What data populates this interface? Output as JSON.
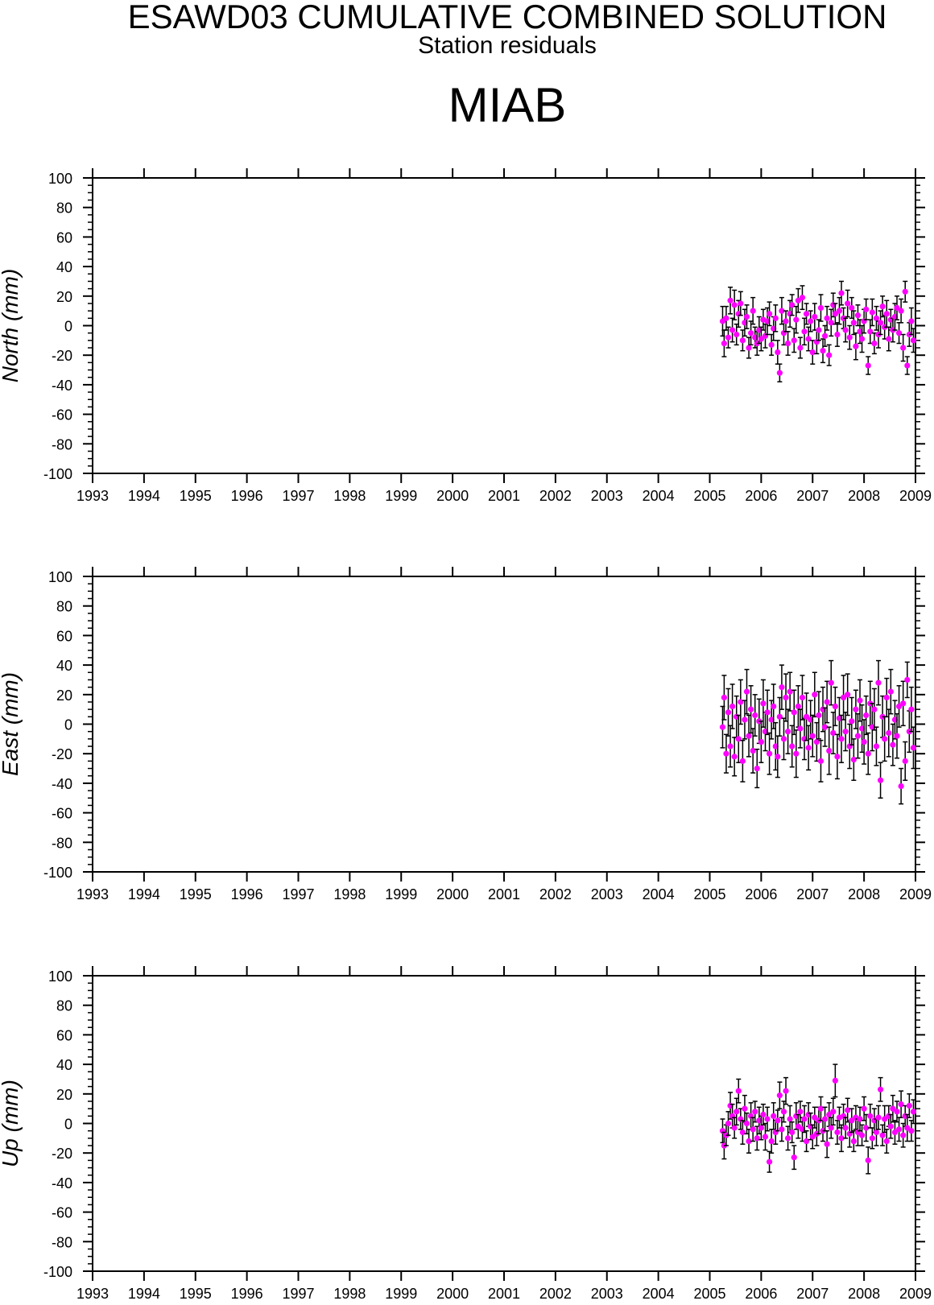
{
  "header": {
    "title": "ESAWD03 CUMULATIVE COMBINED SOLUTION",
    "subtitle": "Station residuals",
    "station": "MIAB"
  },
  "colors": {
    "marker": "#ff00ff",
    "errorbar": "#000000",
    "axis": "#000000"
  },
  "chart_data": [
    {
      "type": "scatter",
      "ylabel": "North (mm)",
      "xlim": [
        1993,
        2009
      ],
      "ylim": [
        -100,
        100
      ],
      "xticks": [
        "1993",
        "1994",
        "1995",
        "1996",
        "1997",
        "1998",
        "1999",
        "2000",
        "2001",
        "2002",
        "2003",
        "2004",
        "2005",
        "2006",
        "2007",
        "2008",
        "2009"
      ],
      "yticks": [
        "100",
        "80",
        "60",
        "40",
        "20",
        "0",
        "-20",
        "-40",
        "-60",
        "-80",
        "-100"
      ],
      "series": [
        {
          "x": [
            2005.25,
            2005.28,
            2005.32,
            2005.36,
            2005.4,
            2005.44,
            2005.48,
            2005.52,
            2005.56,
            2005.6,
            2005.64,
            2005.68,
            2005.72,
            2005.76,
            2005.8,
            2005.84,
            2005.88,
            2005.92,
            2005.96,
            2006.0,
            2006.04,
            2006.08,
            2006.12,
            2006.16,
            2006.2,
            2006.24,
            2006.28,
            2006.32,
            2006.36,
            2006.4,
            2006.44,
            2006.48,
            2006.52,
            2006.56,
            2006.6,
            2006.64,
            2006.68,
            2006.72,
            2006.76,
            2006.8,
            2006.84,
            2006.88,
            2006.92,
            2006.96,
            2007.0,
            2007.04,
            2007.08,
            2007.12,
            2007.16,
            2007.2,
            2007.24,
            2007.28,
            2007.32,
            2007.36,
            2007.4,
            2007.44,
            2007.48,
            2007.52,
            2007.56,
            2007.6,
            2007.64,
            2007.68,
            2007.72,
            2007.76,
            2007.8,
            2007.84,
            2007.88,
            2007.92,
            2007.96,
            2008.0,
            2008.04,
            2008.08,
            2008.12,
            2008.16,
            2008.2,
            2008.24,
            2008.28,
            2008.32,
            2008.36,
            2008.4,
            2008.44,
            2008.48,
            2008.52,
            2008.56,
            2008.6,
            2008.64,
            2008.68,
            2008.72,
            2008.76,
            2008.8,
            2008.84,
            2008.88,
            2008.92,
            2008.96
          ],
          "y": [
            3,
            -12,
            5,
            -8,
            17,
            -3,
            14,
            -6,
            8,
            15,
            -10,
            2,
            6,
            -15,
            -5,
            10,
            -8,
            -12,
            -3,
            -9,
            4,
            -7,
            3,
            8,
            -13,
            -2,
            5,
            -18,
            -32,
            10,
            -5,
            3,
            -12,
            8,
            14,
            -10,
            4,
            17,
            -15,
            19,
            -4,
            8,
            -9,
            3,
            -18,
            6,
            -11,
            -3,
            12,
            -17,
            -7,
            5,
            -20,
            2,
            14,
            8,
            -6,
            10,
            22,
            5,
            -3,
            15,
            -8,
            12,
            2,
            -14,
            7,
            -4,
            -9,
            3,
            11,
            -27,
            -4,
            9,
            -12,
            5,
            -6,
            2,
            13,
            -1,
            8,
            -9,
            4,
            -3,
            6,
            12,
            -5,
            10,
            -15,
            23,
            -27,
            -6,
            3,
            -10
          ],
          "err": [
            10,
            9,
            8,
            7,
            9,
            8,
            10,
            7,
            9,
            8,
            7,
            9,
            8,
            7,
            8,
            9,
            7,
            8,
            9,
            8,
            7,
            8,
            9,
            8,
            7,
            8,
            9,
            8,
            6,
            9,
            8,
            7,
            8,
            9,
            7,
            8,
            9,
            8,
            7,
            8,
            9,
            7,
            8,
            7,
            8,
            9,
            8,
            7,
            9,
            8,
            7,
            8,
            7,
            9,
            8,
            7,
            8,
            9,
            8,
            7,
            8,
            9,
            8,
            7,
            8,
            9,
            7,
            8,
            9,
            8,
            7,
            6,
            8,
            9,
            7,
            8,
            9,
            8,
            7,
            8,
            9,
            8,
            7,
            8,
            9,
            8,
            7,
            8,
            9,
            7,
            6,
            8,
            9,
            8
          ]
        }
      ]
    },
    {
      "type": "scatter",
      "ylabel": "East (mm)",
      "xlim": [
        1993,
        2009
      ],
      "ylim": [
        -100,
        100
      ],
      "xticks": [
        "1993",
        "1994",
        "1995",
        "1996",
        "1997",
        "1998",
        "1999",
        "2000",
        "2001",
        "2002",
        "2003",
        "2004",
        "2005",
        "2006",
        "2007",
        "2008",
        "2009"
      ],
      "yticks": [
        "100",
        "80",
        "60",
        "40",
        "20",
        "0",
        "-20",
        "-40",
        "-60",
        "-80",
        "-100"
      ],
      "series": [
        {
          "x": [
            2005.25,
            2005.28,
            2005.32,
            2005.36,
            2005.4,
            2005.44,
            2005.48,
            2005.52,
            2005.56,
            2005.6,
            2005.64,
            2005.68,
            2005.72,
            2005.76,
            2005.8,
            2005.84,
            2005.88,
            2005.92,
            2005.96,
            2006.0,
            2006.04,
            2006.08,
            2006.12,
            2006.16,
            2006.2,
            2006.24,
            2006.28,
            2006.32,
            2006.36,
            2006.4,
            2006.44,
            2006.48,
            2006.52,
            2006.56,
            2006.6,
            2006.64,
            2006.68,
            2006.72,
            2006.76,
            2006.8,
            2006.84,
            2006.88,
            2006.92,
            2006.96,
            2007.0,
            2007.04,
            2007.08,
            2007.12,
            2007.16,
            2007.2,
            2007.24,
            2007.28,
            2007.32,
            2007.36,
            2007.4,
            2007.44,
            2007.48,
            2007.52,
            2007.56,
            2007.6,
            2007.64,
            2007.68,
            2007.72,
            2007.76,
            2007.8,
            2007.84,
            2007.88,
            2007.92,
            2007.96,
            2008.0,
            2008.04,
            2008.08,
            2008.12,
            2008.16,
            2008.2,
            2008.24,
            2008.28,
            2008.32,
            2008.36,
            2008.4,
            2008.44,
            2008.48,
            2008.52,
            2008.56,
            2008.6,
            2008.64,
            2008.68,
            2008.72,
            2008.76,
            2008.8,
            2008.84,
            2008.88,
            2008.92,
            2008.96
          ],
          "y": [
            -2,
            18,
            -20,
            8,
            -15,
            12,
            -22,
            5,
            -10,
            15,
            -25,
            3,
            22,
            -8,
            10,
            -18,
            6,
            -30,
            2,
            -12,
            14,
            -5,
            8,
            -20,
            3,
            12,
            -15,
            -22,
            5,
            25,
            -10,
            18,
            -5,
            22,
            -15,
            8,
            -20,
            12,
            -3,
            18,
            -10,
            5,
            -16,
            3,
            -8,
            20,
            -12,
            6,
            -25,
            10,
            -2,
            15,
            -18,
            28,
            -6,
            12,
            -22,
            4,
            -10,
            18,
            -5,
            20,
            -15,
            2,
            -24,
            10,
            -8,
            16,
            -3,
            -12,
            6,
            -20,
            14,
            -2,
            10,
            -15,
            28,
            -38,
            5,
            -10,
            18,
            -6,
            22,
            -14,
            3,
            -8,
            12,
            -42,
            14,
            -25,
            30,
            -5,
            10,
            -16
          ],
          "err": [
            14,
            15,
            13,
            16,
            14,
            15,
            13,
            14,
            16,
            15,
            14,
            13,
            15,
            14,
            16,
            15,
            14,
            13,
            15,
            14,
            16,
            13,
            15,
            14,
            13,
            15,
            16,
            14,
            13,
            15,
            14,
            16,
            15,
            13,
            14,
            15,
            16,
            14,
            13,
            15,
            14,
            16,
            15,
            13,
            14,
            15,
            13,
            16,
            14,
            15,
            13,
            14,
            16,
            15,
            14,
            13,
            15,
            14,
            16,
            15,
            13,
            14,
            15,
            16,
            14,
            13,
            15,
            14,
            16,
            15,
            13,
            14,
            15,
            16,
            14,
            13,
            15,
            12,
            14,
            15,
            13,
            16,
            15,
            14,
            13,
            15,
            14,
            12,
            15,
            13,
            12,
            14,
            15,
            14
          ]
        }
      ]
    },
    {
      "type": "scatter",
      "ylabel": "Up (mm)",
      "xlim": [
        1993,
        2009
      ],
      "ylim": [
        -100,
        100
      ],
      "xticks": [
        "1993",
        "1994",
        "1995",
        "1996",
        "1997",
        "1998",
        "1999",
        "2000",
        "2001",
        "2002",
        "2003",
        "2004",
        "2005",
        "2006",
        "2007",
        "2008",
        "2009"
      ],
      "yticks": [
        "100",
        "80",
        "60",
        "40",
        "20",
        "0",
        "-20",
        "-40",
        "-60",
        "-80",
        "-100"
      ],
      "series": [
        {
          "x": [
            2005.25,
            2005.28,
            2005.32,
            2005.36,
            2005.4,
            2005.44,
            2005.48,
            2005.52,
            2005.56,
            2005.6,
            2005.64,
            2005.68,
            2005.72,
            2005.76,
            2005.8,
            2005.84,
            2005.88,
            2005.92,
            2005.96,
            2006.0,
            2006.04,
            2006.08,
            2006.12,
            2006.16,
            2006.2,
            2006.24,
            2006.28,
            2006.32,
            2006.36,
            2006.4,
            2006.44,
            2006.48,
            2006.52,
            2006.56,
            2006.6,
            2006.64,
            2006.68,
            2006.72,
            2006.76,
            2006.8,
            2006.84,
            2006.88,
            2006.92,
            2006.96,
            2007.0,
            2007.04,
            2007.08,
            2007.12,
            2007.16,
            2007.2,
            2007.24,
            2007.28,
            2007.32,
            2007.36,
            2007.4,
            2007.44,
            2007.48,
            2007.52,
            2007.56,
            2007.6,
            2007.64,
            2007.68,
            2007.72,
            2007.76,
            2007.8,
            2007.84,
            2007.88,
            2007.92,
            2007.96,
            2008.0,
            2008.04,
            2008.08,
            2008.12,
            2008.16,
            2008.2,
            2008.24,
            2008.28,
            2008.32,
            2008.36,
            2008.4,
            2008.44,
            2008.48,
            2008.52,
            2008.56,
            2008.6,
            2008.64,
            2008.68,
            2008.72,
            2008.76,
            2008.8,
            2008.84,
            2008.88,
            2008.92,
            2008.96
          ],
          "y": [
            -5,
            -15,
            -8,
            0,
            12,
            5,
            -3,
            8,
            22,
            3,
            -6,
            10,
            0,
            -12,
            5,
            -4,
            8,
            -10,
            2,
            -3,
            6,
            -9,
            3,
            -26,
            -12,
            5,
            -6,
            2,
            19,
            -4,
            8,
            22,
            -10,
            3,
            -6,
            -23,
            5,
            -2,
            8,
            -4,
            3,
            -12,
            6,
            -2,
            -9,
            4,
            -7,
            2,
            10,
            -5,
            3,
            -14,
            6,
            -3,
            8,
            29,
            -6,
            4,
            -10,
            5,
            -3,
            9,
            -7,
            2,
            -12,
            4,
            -6,
            3,
            -8,
            10,
            -3,
            -25,
            5,
            -10,
            2,
            -6,
            4,
            23,
            -8,
            3,
            -12,
            5,
            -2,
            10,
            -6,
            8,
            -4,
            13,
            -8,
            5,
            -3,
            12,
            -5,
            8
          ],
          "err": [
            8,
            9,
            7,
            8,
            9,
            8,
            7,
            9,
            8,
            7,
            8,
            9,
            7,
            8,
            9,
            8,
            7,
            8,
            9,
            8,
            7,
            9,
            8,
            7,
            8,
            9,
            8,
            7,
            9,
            8,
            7,
            9,
            8,
            9,
            7,
            8,
            9,
            8,
            7,
            8,
            9,
            7,
            8,
            9,
            8,
            7,
            8,
            9,
            8,
            7,
            8,
            9,
            8,
            7,
            9,
            11,
            8,
            7,
            9,
            8,
            7,
            8,
            9,
            8,
            7,
            8,
            9,
            8,
            7,
            8,
            9,
            9,
            8,
            7,
            8,
            9,
            8,
            8,
            7,
            9,
            8,
            7,
            8,
            9,
            8,
            7,
            8,
            9,
            8,
            7,
            9,
            8,
            7,
            8
          ]
        }
      ]
    }
  ]
}
